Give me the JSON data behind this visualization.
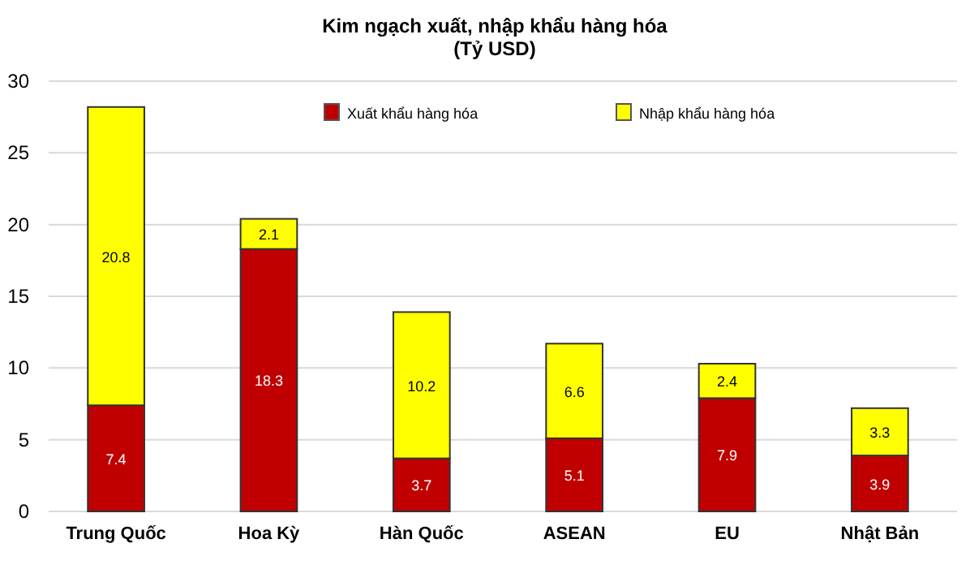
{
  "chart_data": {
    "type": "bar",
    "title": "Kim ngạch xuất, nhập khẩu hàng hóa",
    "subtitle": "(Tỷ USD)",
    "categories": [
      "Trung Quốc",
      "Hoa Kỳ",
      "Hàn Quốc",
      "ASEAN",
      "EU",
      "Nhật Bản"
    ],
    "series": [
      {
        "name": "Xuất khẩu hàng hóa",
        "color": "#c00000",
        "values": [
          7.4,
          18.3,
          3.7,
          5.1,
          7.9,
          3.9
        ]
      },
      {
        "name": "Nhập khẩu hàng hóa",
        "color": "#ffff00",
        "values": [
          20.8,
          2.1,
          10.2,
          6.6,
          2.4,
          3.3
        ]
      }
    ],
    "stacked": true,
    "data_labels": true,
    "ylim": [
      0,
      30
    ],
    "yticks": [
      0,
      5,
      10,
      15,
      20,
      25,
      30
    ],
    "grid": "y",
    "legend": "top"
  }
}
